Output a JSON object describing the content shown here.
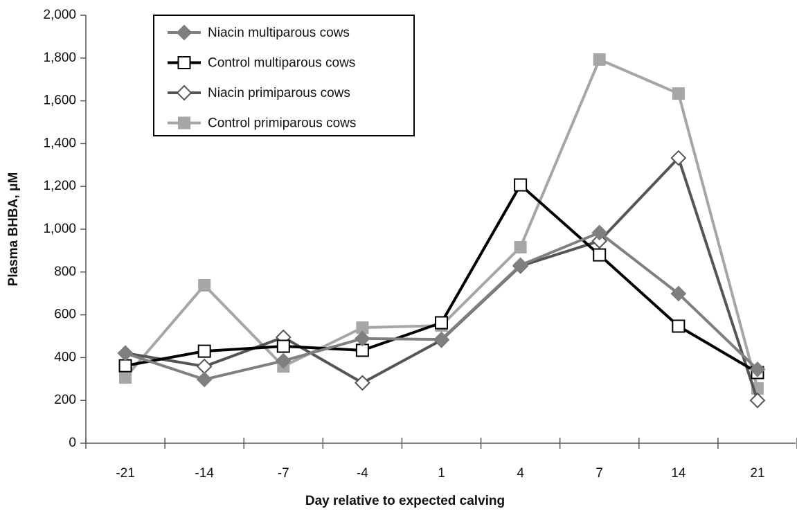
{
  "chart_data": {
    "type": "line",
    "x_label": "Day relative to expected calving",
    "y_label": "Plasma BHBA, μM",
    "categories": [
      "-21",
      "-14",
      "-7",
      "-4",
      "1",
      "4",
      "7",
      "14",
      "21"
    ],
    "series": [
      {
        "name": "Niacin multiparous cows",
        "color": "#7f7f7f",
        "marker": "diamond",
        "filled": true,
        "values": [
          420,
          298,
          385,
          489,
          485,
          832,
          984,
          699,
          345
        ]
      },
      {
        "name": "Control multiparous cows",
        "color": "#000000",
        "marker": "square",
        "filled": false,
        "values": [
          362,
          430,
          453,
          434,
          563,
          1207,
          880,
          547,
          330
        ]
      },
      {
        "name": "Niacin primiparous cows",
        "color": "#555555",
        "marker": "diamond",
        "filled": false,
        "values": [
          421,
          359,
          495,
          282,
          482,
          828,
          945,
          1333,
          200
        ]
      },
      {
        "name": "Control primiparous cows",
        "color": "#a6a6a6",
        "marker": "square",
        "filled": true,
        "values": [
          307,
          738,
          359,
          540,
          550,
          916,
          1793,
          1634,
          256
        ]
      }
    ],
    "ylim": [
      0,
      2000
    ],
    "yticks": [
      0,
      200,
      400,
      600,
      800,
      {
        "value": 1000,
        "label": "1,000"
      },
      {
        "value": 1200,
        "label": "1,200"
      },
      {
        "value": 1400,
        "label": "1,400"
      },
      {
        "value": 1600,
        "label": "1,600"
      },
      {
        "value": 1800,
        "label": "1,800"
      },
      {
        "value": 2000,
        "label": "2,000"
      }
    ],
    "grid": false,
    "legend": "top-left"
  }
}
